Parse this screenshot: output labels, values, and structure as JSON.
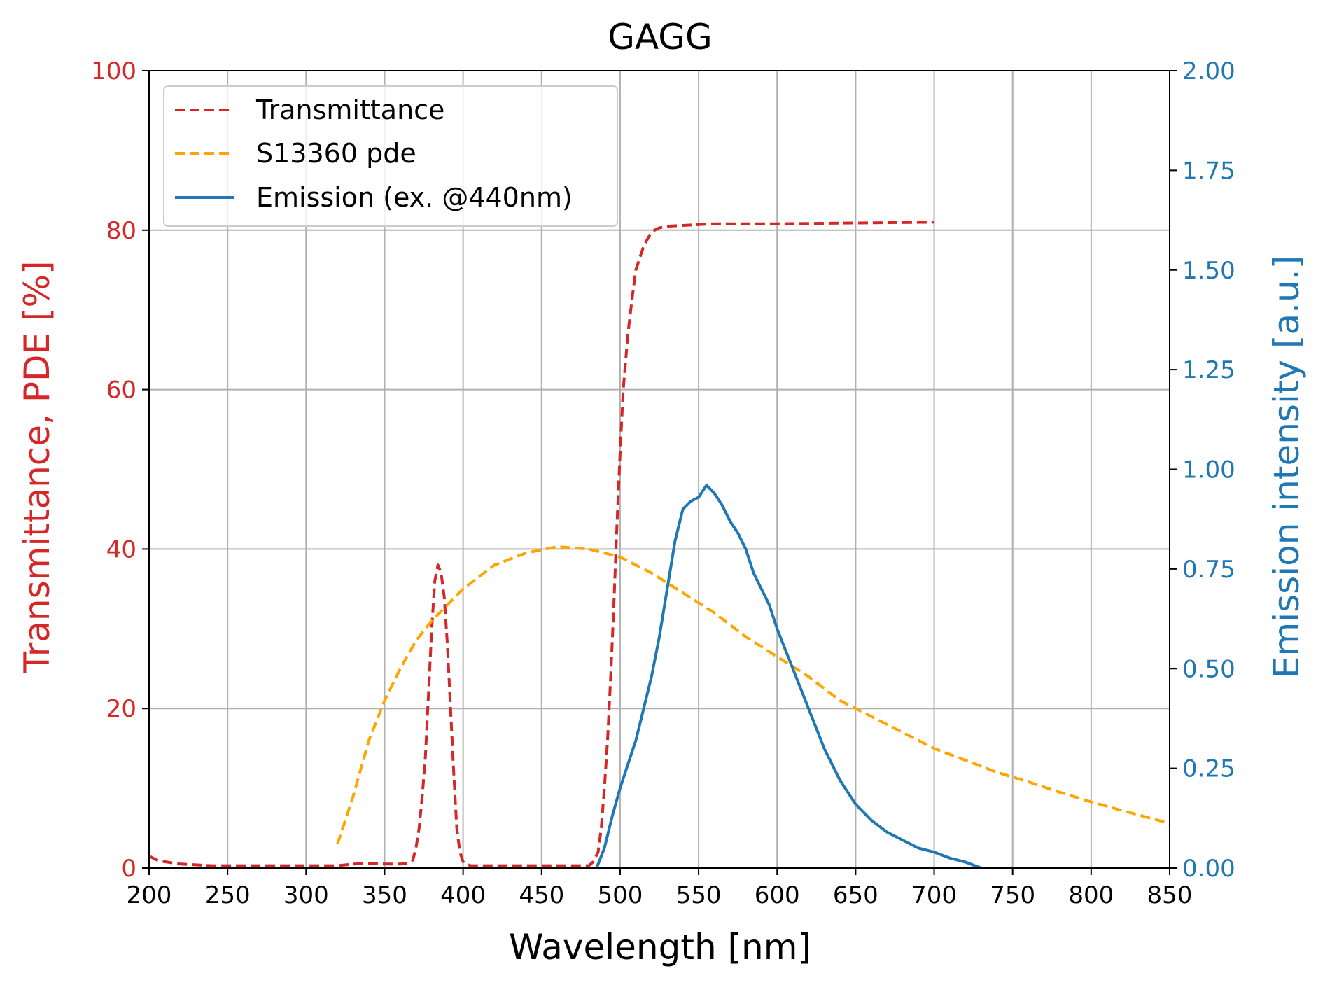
{
  "chart_data": {
    "type": "line",
    "title": "GAGG",
    "xlabel": "Wavelength [nm]",
    "ylabel": "Transmittance, PDE [%]",
    "y2label": "Emission intensity [a.u.]",
    "xlim": [
      200,
      850
    ],
    "ylim": [
      0,
      100
    ],
    "y2lim": [
      0,
      2.0
    ],
    "xticks": [
      "200",
      "250",
      "300",
      "350",
      "400",
      "450",
      "500",
      "550",
      "600",
      "650",
      "700",
      "750",
      "800",
      "850"
    ],
    "yticks": [
      "0",
      "20",
      "40",
      "60",
      "80",
      "100"
    ],
    "y2ticks": [
      "0.00",
      "0.25",
      "0.50",
      "0.75",
      "1.00",
      "1.25",
      "1.50",
      "1.75",
      "2.00"
    ],
    "grid": true,
    "legend_position": "upper-left",
    "colors": {
      "transmittance": "#d62728",
      "pde": "#ffa500",
      "emission": "#1f77b4",
      "left_axis": "#d62728",
      "right_axis": "#1f77b4"
    },
    "series": [
      {
        "name": "Transmittance",
        "axis": "left",
        "style": "dashed",
        "x": [
          200,
          205,
          210,
          220,
          230,
          240,
          250,
          260,
          270,
          280,
          290,
          300,
          310,
          320,
          330,
          340,
          350,
          360,
          365,
          368,
          370,
          372,
          374,
          376,
          378,
          380,
          382,
          384,
          386,
          388,
          390,
          392,
          394,
          396,
          398,
          400,
          402,
          405,
          410,
          420,
          440,
          460,
          480,
          483,
          486,
          488,
          490,
          492,
          494,
          496,
          498,
          500,
          502,
          505,
          508,
          510,
          515,
          520,
          525,
          530,
          540,
          550,
          560,
          600,
          650,
          700
        ],
        "y": [
          1.5,
          1.0,
          0.8,
          0.5,
          0.4,
          0.3,
          0.3,
          0.3,
          0.3,
          0.3,
          0.3,
          0.3,
          0.3,
          0.3,
          0.5,
          0.6,
          0.5,
          0.5,
          0.6,
          1.0,
          2.5,
          5,
          9,
          14,
          22,
          30,
          36,
          38,
          37,
          34,
          28,
          20,
          12,
          5,
          2,
          0.8,
          0.5,
          0.3,
          0.3,
          0.3,
          0.3,
          0.3,
          0.3,
          0.8,
          2,
          5,
          10,
          16,
          24,
          33,
          43,
          52,
          60,
          67,
          72,
          75,
          78,
          79.8,
          80.3,
          80.5,
          80.6,
          80.7,
          80.8,
          80.8,
          80.9,
          81.0
        ]
      },
      {
        "name": "S13360 pde",
        "axis": "left",
        "style": "dashed",
        "x": [
          320,
          330,
          340,
          350,
          360,
          370,
          380,
          390,
          400,
          420,
          440,
          460,
          480,
          500,
          520,
          540,
          560,
          580,
          600,
          620,
          640,
          660,
          680,
          700,
          720,
          740,
          760,
          780,
          800,
          820,
          850
        ],
        "y": [
          3,
          9,
          16,
          21,
          25,
          28.5,
          31,
          33,
          35,
          38,
          39.5,
          40.3,
          40,
          39,
          37,
          34.5,
          32,
          29,
          26.5,
          24,
          21,
          19,
          17,
          15,
          13.5,
          12,
          10.8,
          9.5,
          8.3,
          7.2,
          5.6
        ]
      },
      {
        "name": "Emission (ex. @440nm)",
        "axis": "right",
        "style": "solid",
        "x": [
          485,
          490,
          495,
          500,
          505,
          510,
          515,
          520,
          525,
          530,
          535,
          540,
          545,
          550,
          555,
          560,
          565,
          570,
          575,
          580,
          585,
          590,
          595,
          600,
          605,
          610,
          615,
          620,
          625,
          630,
          635,
          640,
          645,
          650,
          660,
          670,
          680,
          690,
          700,
          710,
          720,
          730
        ],
        "y": [
          0.0,
          0.05,
          0.13,
          0.2,
          0.26,
          0.32,
          0.4,
          0.48,
          0.58,
          0.7,
          0.82,
          0.9,
          0.92,
          0.93,
          0.96,
          0.94,
          0.91,
          0.87,
          0.84,
          0.8,
          0.74,
          0.7,
          0.66,
          0.6,
          0.55,
          0.5,
          0.45,
          0.4,
          0.35,
          0.3,
          0.26,
          0.22,
          0.19,
          0.16,
          0.12,
          0.09,
          0.07,
          0.05,
          0.04,
          0.025,
          0.015,
          0.0
        ]
      }
    ]
  }
}
